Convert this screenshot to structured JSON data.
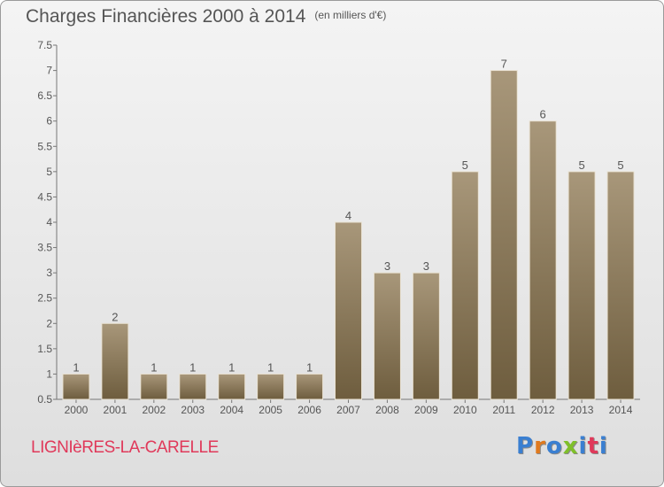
{
  "header": {
    "title": "Charges Financières 2000 à 2014",
    "subtitle": "(en milliers d'€)"
  },
  "footer": {
    "commune": "LIGNIèRES-LA-CARELLE",
    "logo_text": "Proxiti",
    "logo_colors": [
      "#3a7fd1",
      "#e07a1f",
      "#3a7fd1",
      "#7fbf2a",
      "#3a7fd1",
      "#e0395a",
      "#3a7fd1"
    ]
  },
  "colors": {
    "bar_top": "#a8977a",
    "bar_bottom": "#6e5d3e",
    "bar_edge": "#e9e2d3",
    "text": "#555555"
  },
  "chart_data": {
    "type": "bar",
    "categories": [
      "2000",
      "2001",
      "2002",
      "2003",
      "2004",
      "2005",
      "2006",
      "2007",
      "2008",
      "2009",
      "2010",
      "2011",
      "2012",
      "2013",
      "2014"
    ],
    "values": [
      1,
      2,
      1,
      1,
      1,
      1,
      1,
      4,
      3,
      3,
      5,
      7,
      6,
      5,
      5
    ],
    "data_labels": [
      "1",
      "2",
      "1",
      "1",
      "1",
      "1",
      "1",
      "4",
      "3",
      "3",
      "5",
      "7",
      "6",
      "5",
      "5"
    ],
    "ylim": [
      0.5,
      7.5
    ],
    "yticks": [
      0.5,
      1,
      1.5,
      2,
      2.5,
      3,
      3.5,
      4,
      4.5,
      5,
      5.5,
      6,
      6.5,
      7,
      7.5
    ],
    "ytick_labels": [
      "0.5",
      "1",
      "1.5",
      "2",
      "2.5",
      "3",
      "3.5",
      "4",
      "4.5",
      "5",
      "5.5",
      "6",
      "6.5",
      "7",
      "7.5"
    ],
    "grid": false,
    "xlabel": "",
    "ylabel": ""
  }
}
